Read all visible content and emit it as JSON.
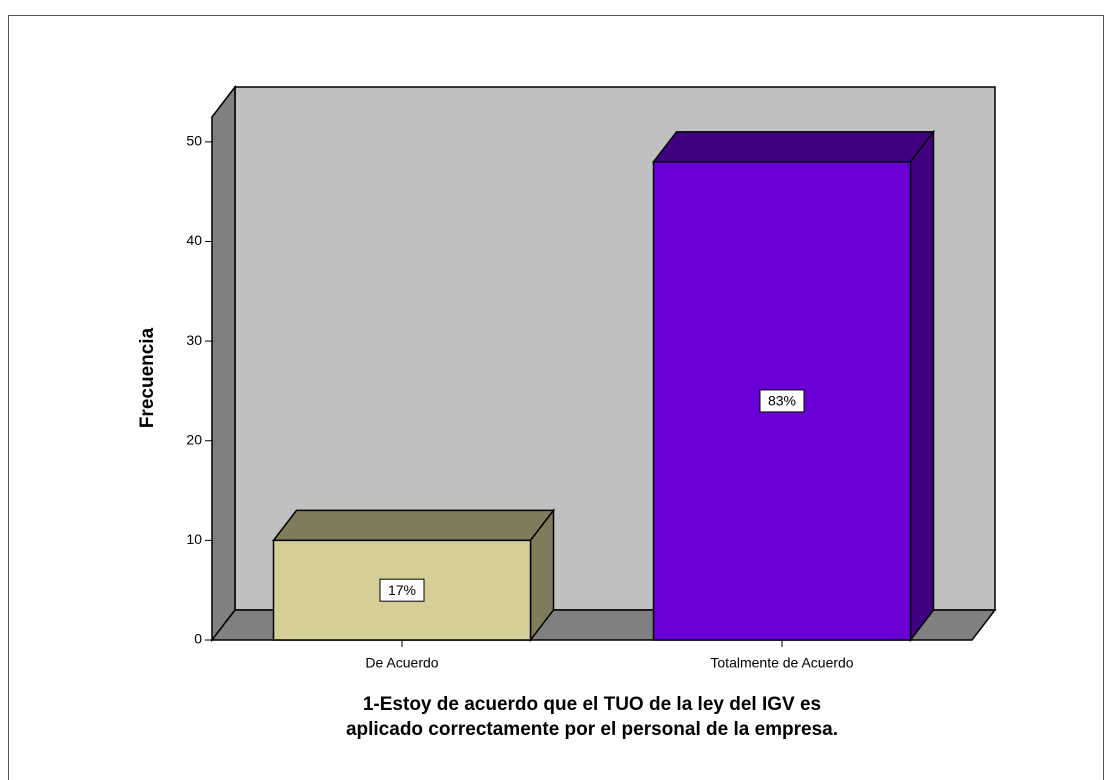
{
  "chart_data": {
    "type": "bar3d",
    "x_label": [
      "1-Estoy de acuerdo que el TUO de la ley del IGV es",
      "aplicado correctamente por el personal de la empresa."
    ],
    "y_label": "Frecuencia",
    "categories": [
      "De Acuerdo",
      "Totalmente de Acuerdo"
    ],
    "values": [
      10,
      48
    ],
    "colors": [
      "#d5cf97",
      "#6a00d5"
    ],
    "percent": [
      17,
      83
    ],
    "percent_labels": [
      "17%",
      "83%"
    ],
    "ylim": [
      0,
      52.5
    ],
    "yticks": [
      0,
      10,
      20,
      30,
      40,
      50
    ]
  }
}
